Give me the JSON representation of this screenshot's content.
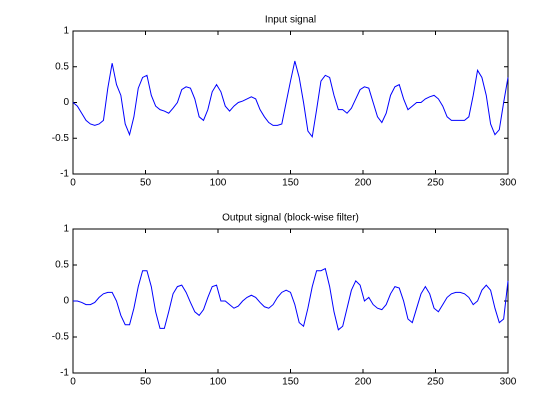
{
  "chart_data": [
    {
      "type": "line",
      "title": "Input signal",
      "x": [
        0,
        3,
        6,
        9,
        12,
        15,
        18,
        21,
        24,
        27,
        30,
        33,
        36,
        39,
        42,
        45,
        48,
        51,
        54,
        57,
        60,
        63,
        66,
        69,
        72,
        75,
        78,
        81,
        84,
        87,
        90,
        93,
        96,
        99,
        102,
        105,
        108,
        111,
        114,
        117,
        120,
        123,
        126,
        129,
        132,
        135,
        138,
        141,
        144,
        147,
        150,
        153,
        156,
        159,
        162,
        165,
        168,
        171,
        174,
        177,
        180,
        183,
        186,
        189,
        192,
        195,
        198,
        201,
        204,
        207,
        210,
        213,
        216,
        219,
        222,
        225,
        228,
        231,
        234,
        237,
        240,
        243,
        246,
        249,
        252,
        255,
        258,
        261,
        264,
        267,
        270,
        273,
        276,
        279,
        282,
        285,
        288,
        291,
        294,
        297,
        300
      ],
      "series": [
        {
          "color": "#0000ff",
          "values": [
            0.0,
            -0.05,
            -0.15,
            -0.25,
            -0.3,
            -0.32,
            -0.3,
            -0.25,
            0.2,
            0.55,
            0.25,
            0.1,
            -0.3,
            -0.45,
            -0.2,
            0.2,
            0.35,
            0.38,
            0.1,
            -0.05,
            -0.1,
            -0.12,
            -0.15,
            -0.08,
            0.0,
            0.18,
            0.22,
            0.2,
            0.05,
            -0.2,
            -0.25,
            -0.1,
            0.15,
            0.25,
            0.15,
            -0.05,
            -0.12,
            -0.05,
            0.0,
            0.02,
            0.05,
            0.08,
            0.05,
            -0.1,
            -0.2,
            -0.28,
            -0.32,
            -0.32,
            -0.3,
            0.0,
            0.3,
            0.58,
            0.35,
            0.0,
            -0.4,
            -0.48,
            -0.1,
            0.3,
            0.38,
            0.35,
            0.1,
            -0.1,
            -0.1,
            -0.15,
            -0.08,
            0.05,
            0.18,
            0.22,
            0.2,
            0.0,
            -0.2,
            -0.28,
            -0.15,
            0.1,
            0.22,
            0.25,
            0.05,
            -0.1,
            -0.05,
            0.0,
            0.0,
            0.05,
            0.08,
            0.1,
            0.05,
            -0.05,
            -0.2,
            -0.25,
            -0.25,
            -0.25,
            -0.25,
            -0.2,
            0.1,
            0.45,
            0.35,
            0.1,
            -0.3,
            -0.45,
            -0.38,
            0.0,
            0.35
          ]
        }
      ],
      "xlim": [
        0,
        300
      ],
      "xticks": [
        0,
        50,
        100,
        150,
        200,
        250,
        300
      ],
      "ylim": [
        -1,
        1
      ],
      "yticks": [
        -1,
        -0.5,
        0,
        0.5,
        1
      ]
    },
    {
      "type": "line",
      "title": "Output signal (block-wise filter)",
      "x": [
        0,
        3,
        6,
        9,
        12,
        15,
        18,
        21,
        24,
        27,
        30,
        33,
        36,
        39,
        42,
        45,
        48,
        51,
        54,
        57,
        60,
        63,
        66,
        69,
        72,
        75,
        78,
        81,
        84,
        87,
        90,
        93,
        96,
        99,
        102,
        105,
        108,
        111,
        114,
        117,
        120,
        123,
        126,
        129,
        132,
        135,
        138,
        141,
        144,
        147,
        150,
        153,
        156,
        159,
        162,
        165,
        168,
        171,
        174,
        177,
        180,
        183,
        186,
        189,
        192,
        195,
        198,
        201,
        204,
        207,
        210,
        213,
        216,
        219,
        222,
        225,
        228,
        231,
        234,
        237,
        240,
        243,
        246,
        249,
        252,
        255,
        258,
        261,
        264,
        267,
        270,
        273,
        276,
        279,
        282,
        285,
        288,
        291,
        294,
        297,
        300
      ],
      "series": [
        {
          "color": "#0000ff",
          "values": [
            0.0,
            0.0,
            -0.02,
            -0.05,
            -0.05,
            -0.02,
            0.05,
            0.1,
            0.12,
            0.12,
            0.0,
            -0.2,
            -0.33,
            -0.33,
            -0.1,
            0.2,
            0.42,
            0.42,
            0.2,
            -0.15,
            -0.38,
            -0.38,
            -0.15,
            0.1,
            0.2,
            0.22,
            0.12,
            -0.02,
            -0.15,
            -0.2,
            -0.12,
            0.05,
            0.2,
            0.22,
            0.0,
            0.0,
            -0.05,
            -0.1,
            -0.07,
            0.0,
            0.05,
            0.08,
            0.05,
            -0.02,
            -0.08,
            -0.1,
            -0.05,
            0.05,
            0.12,
            0.15,
            0.12,
            -0.05,
            -0.3,
            -0.35,
            -0.1,
            0.2,
            0.42,
            0.42,
            0.45,
            0.2,
            -0.15,
            -0.4,
            -0.35,
            -0.1,
            0.15,
            0.28,
            0.22,
            0.0,
            0.05,
            -0.05,
            -0.1,
            -0.12,
            -0.05,
            0.1,
            0.2,
            0.18,
            0.0,
            -0.25,
            -0.3,
            -0.1,
            0.1,
            0.2,
            0.1,
            -0.1,
            -0.15,
            -0.05,
            0.05,
            0.1,
            0.12,
            0.12,
            0.1,
            0.05,
            -0.05,
            0.0,
            0.15,
            0.22,
            0.15,
            -0.1,
            -0.3,
            -0.25,
            0.28
          ]
        }
      ],
      "xlim": [
        0,
        300
      ],
      "xticks": [
        0,
        50,
        100,
        150,
        200,
        250,
        300
      ],
      "ylim": [
        -1,
        1
      ],
      "yticks": [
        -1,
        -0.5,
        0,
        0.5,
        1
      ]
    }
  ]
}
